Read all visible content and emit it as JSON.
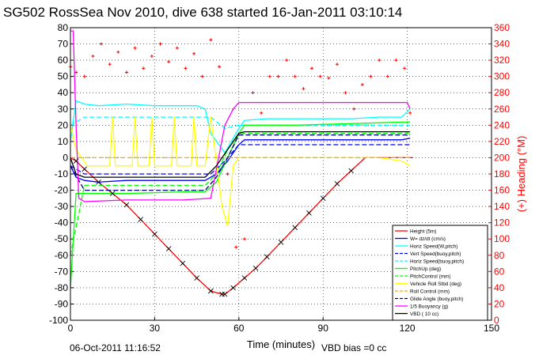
{
  "chart_data": {
    "type": "line",
    "title": "SG502 RossSea Nov 2010, dive 638 started 16-Jan-2011 03:10:14",
    "xlabel": "Time (minutes)",
    "ylabel": "",
    "y2label": "(+) Heading (°M)",
    "xlim": [
      0,
      150
    ],
    "ylim": [
      -100,
      80
    ],
    "y2lim": [
      0,
      360
    ],
    "x_ticks": [
      "0",
      "30",
      "60",
      "90",
      "120",
      "150"
    ],
    "y_ticks": [
      "80",
      "70",
      "60",
      "50",
      "40",
      "30",
      "20",
      "10",
      "0",
      "-10",
      "-20",
      "-30",
      "-40",
      "-50",
      "-60",
      "-70",
      "-80",
      "-90",
      "-100"
    ],
    "y2_ticks": [
      "360",
      "340",
      "320",
      "300",
      "280",
      "260",
      "240",
      "220",
      "200",
      "180",
      "160",
      "140",
      "120",
      "100",
      "80",
      "60",
      "40",
      "20",
      "0"
    ],
    "grid": true,
    "legend_position": "bottom-right",
    "footer_left": "06-Oct-2011 11:16:52",
    "footer_right": "VBD bias =0 cc",
    "colors": {
      "red": "#ff0000",
      "blue": "#0000ff",
      "darkblue": "#00007f",
      "cyan": "#00ffff",
      "green": "#00ff00",
      "yellow": "#ffff00",
      "magenta": "#ff00ff",
      "black": "#000000",
      "orange": "#ffa500"
    },
    "series": [
      {
        "name": "Height (5m)",
        "color": "#ff0000",
        "dash": "solid",
        "axis": "left",
        "x": [
          0,
          2,
          5,
          10,
          15,
          20,
          25,
          30,
          35,
          40,
          45,
          50,
          54,
          55,
          58,
          62,
          66,
          70,
          75,
          80,
          85,
          90,
          95,
          100,
          105,
          110,
          115,
          120,
          122
        ],
        "y": [
          0,
          -2,
          -7,
          -15,
          -22,
          -29,
          -38,
          -47,
          -56,
          -65,
          -74,
          -82,
          -84,
          -84,
          -80,
          -74,
          -68,
          -61,
          -52,
          -43,
          -34,
          -25,
          -16,
          -8,
          0,
          0,
          0,
          0,
          0
        ]
      },
      {
        "name": "W= dz/dt (cm/s)",
        "color": "#0000ff",
        "dash": "solid",
        "axis": "left",
        "x": [
          0,
          2,
          5,
          10,
          20,
          30,
          40,
          48,
          52,
          56,
          60,
          62,
          70,
          80,
          90,
          100,
          110,
          118,
          121
        ],
        "y": [
          -5,
          -12,
          -14,
          -15,
          -14,
          -14,
          -14,
          -14,
          -10,
          -2,
          8,
          11,
          11,
          11,
          11,
          11,
          11,
          11,
          12
        ]
      },
      {
        "name": "Horiz Speed(W,pitch)",
        "color": "#00ffff",
        "dash": "solid",
        "axis": "left",
        "x": [
          0,
          2,
          5,
          10,
          20,
          30,
          40,
          45,
          48,
          50,
          55,
          60,
          62,
          70,
          80,
          90,
          100,
          110,
          118,
          121
        ],
        "y": [
          10,
          35,
          33,
          32,
          33,
          32,
          32,
          32,
          30,
          15,
          3,
          18,
          23,
          24,
          24,
          24,
          24,
          25,
          25,
          30
        ]
      },
      {
        "name": "Vert Speed(buoy,pitch)",
        "color": "#0000ff",
        "dash": "dashed",
        "axis": "left",
        "x": [
          0,
          5,
          30,
          50,
          55,
          60,
          90,
          121
        ],
        "y": [
          -5,
          -10,
          -10,
          -10,
          -2,
          8,
          8,
          8
        ]
      },
      {
        "name": "Horiz Speed(buoy,pitch)",
        "color": "#00ffff",
        "dash": "dashed",
        "axis": "left",
        "x": [
          0,
          5,
          30,
          50,
          55,
          60,
          90,
          121
        ],
        "y": [
          20,
          25,
          25,
          25,
          18,
          20,
          20,
          20
        ]
      },
      {
        "name": "PitchUp (deg)",
        "color": "#00ff00",
        "dash": "solid",
        "axis": "left",
        "x": [
          0,
          2,
          5,
          20,
          40,
          48,
          52,
          56,
          60,
          62,
          80,
          100,
          121
        ],
        "y": [
          -80,
          -22,
          -22,
          -22,
          -21,
          -21,
          -15,
          0,
          15,
          20,
          20,
          21,
          22
        ]
      },
      {
        "name": "PitchControl (mm)",
        "color": "#00ff00",
        "dash": "dashed",
        "axis": "left",
        "x": [
          0,
          5,
          48,
          52,
          56,
          60,
          90,
          121
        ],
        "y": [
          -60,
          -17,
          -17,
          -10,
          5,
          15,
          15,
          15
        ]
      },
      {
        "name": "Vehicle Roll Stbd (deg)",
        "color": "#ffff00",
        "dash": "solid",
        "axis": "left",
        "x": [
          0,
          2,
          6,
          14,
          15,
          16,
          22,
          23,
          24,
          28,
          29,
          30,
          36,
          37,
          38,
          43,
          44,
          45,
          48,
          50,
          54,
          56,
          58,
          60,
          66,
          70,
          80,
          90,
          100,
          110,
          118,
          121
        ],
        "y": [
          20,
          5,
          -5,
          -5,
          25,
          -5,
          -5,
          25,
          -5,
          -5,
          25,
          -5,
          -5,
          25,
          -5,
          -5,
          25,
          -5,
          -5,
          25,
          -30,
          -42,
          -5,
          0,
          0,
          0,
          0,
          0,
          0,
          0,
          -2,
          -5
        ]
      },
      {
        "name": "Roll Control (mm)",
        "color": "#ffa500",
        "dash": "dashed",
        "axis": "left",
        "x": [
          0,
          60,
          121
        ],
        "y": [
          0,
          0,
          0
        ]
      },
      {
        "name": "Glide Angle (buoy,pitch)",
        "color": "#00007f",
        "dash": "dashed",
        "axis": "left",
        "x": [
          0,
          5,
          48,
          52,
          56,
          60,
          90,
          121
        ],
        "y": [
          -5,
          -20,
          -20,
          -12,
          0,
          14,
          14,
          14
        ]
      },
      {
        "name": "1/5 Buoyancy (g)",
        "color": "#ff00ff",
        "dash": "solid",
        "axis": "left",
        "x": [
          0,
          1,
          2,
          3,
          5,
          20,
          40,
          50,
          55,
          58,
          60,
          70,
          80,
          90,
          100,
          110,
          120,
          121
        ],
        "y": [
          78,
          78,
          20,
          -25,
          -27,
          -26,
          -26,
          -25,
          20,
          30,
          34,
          34,
          34,
          34,
          34,
          34,
          34,
          30
        ]
      },
      {
        "name": "VBD ( 10 cc)",
        "color": "#000000",
        "dash": "solid",
        "axis": "left",
        "x": [
          0,
          2,
          5,
          48,
          52,
          56,
          60,
          62,
          121
        ],
        "y": [
          0,
          -10,
          -12,
          -12,
          -5,
          5,
          15,
          16,
          16
        ]
      },
      {
        "name": "Heading",
        "color": "#ff0000",
        "dash": "dotted",
        "axis": "right",
        "x": [
          0,
          2,
          5,
          8,
          11,
          14,
          17,
          20,
          23,
          26,
          29,
          32,
          35,
          38,
          41,
          44,
          47,
          50,
          53,
          56,
          59,
          62,
          65,
          68,
          71,
          74,
          77,
          80,
          83,
          86,
          89,
          92,
          95,
          98,
          101,
          104,
          107,
          110,
          113,
          116,
          119,
          121
        ],
        "y": [
          312,
          305,
          300,
          325,
          340,
          315,
          330,
          305,
          335,
          310,
          325,
          340,
          318,
          335,
          310,
          328,
          300,
          345,
          312,
          180,
          90,
          100,
          280,
          255,
          300,
          300,
          320,
          300,
          285,
          310,
          300,
          298,
          315,
          280,
          260,
          290,
          300,
          320,
          300,
          320,
          310,
          255
        ]
      }
    ]
  }
}
